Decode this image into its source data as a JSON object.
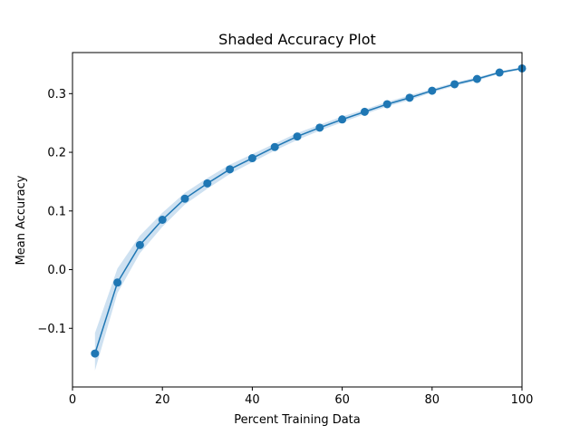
{
  "chart_data": {
    "type": "line",
    "title": "Shaded Accuracy Plot",
    "xlabel": "Percent Training Data",
    "ylabel": "Mean Accuracy",
    "xlim": [
      0,
      100
    ],
    "ylim": [
      -0.2,
      0.37
    ],
    "xticks": [
      0,
      20,
      40,
      60,
      80,
      100
    ],
    "xtick_labels": [
      "0",
      "20",
      "40",
      "60",
      "80",
      "100"
    ],
    "yticks": [
      -0.1,
      0.0,
      0.1,
      0.2,
      0.3
    ],
    "ytick_labels": [
      "−0.1",
      "0.0",
      "0.1",
      "0.2",
      "0.3"
    ],
    "grid": false,
    "series": [
      {
        "color": "#1f77b4",
        "band_color": "#a6c8e6",
        "x": [
          5,
          10,
          15,
          20,
          25,
          30,
          35,
          40,
          45,
          50,
          55,
          60,
          65,
          70,
          75,
          80,
          85,
          90,
          95,
          100
        ],
        "y": [
          -0.143,
          -0.022,
          0.042,
          0.085,
          0.121,
          0.147,
          0.171,
          0.19,
          0.209,
          0.227,
          0.242,
          0.256,
          0.269,
          0.282,
          0.293,
          0.305,
          0.316,
          0.325,
          0.336,
          0.343
        ],
        "lower": [
          -0.172,
          -0.04,
          0.028,
          0.073,
          0.111,
          0.138,
          0.163,
          0.183,
          0.203,
          0.221,
          0.237,
          0.251,
          0.265,
          0.278,
          0.289,
          0.302,
          0.313,
          0.322,
          0.334,
          0.341
        ],
        "upper": [
          -0.108,
          0.002,
          0.058,
          0.097,
          0.131,
          0.156,
          0.179,
          0.197,
          0.215,
          0.233,
          0.247,
          0.261,
          0.273,
          0.286,
          0.297,
          0.308,
          0.319,
          0.328,
          0.338,
          0.345
        ]
      }
    ]
  }
}
